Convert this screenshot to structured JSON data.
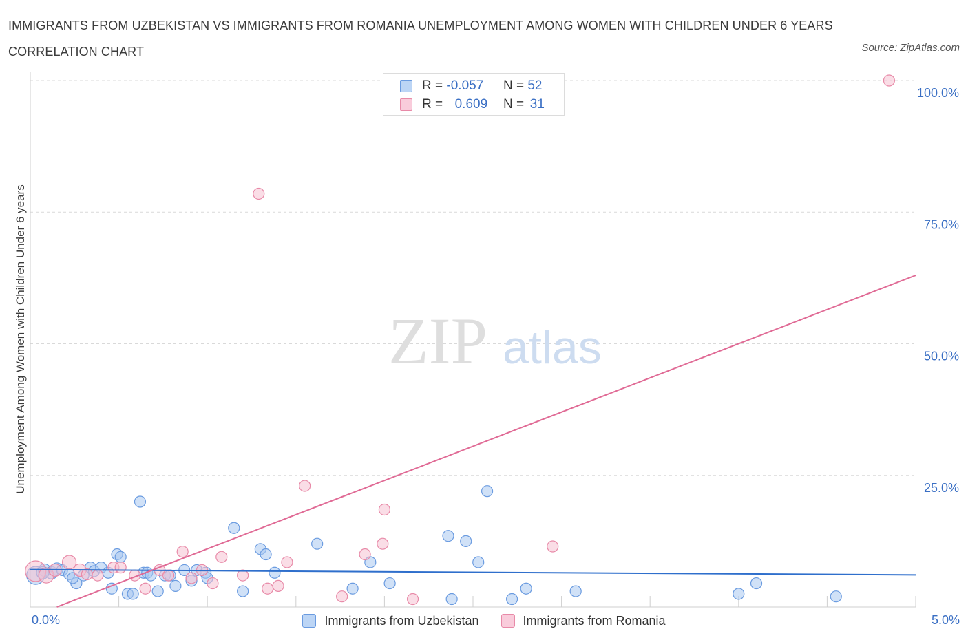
{
  "title": "IMMIGRANTS FROM UZBEKISTAN VS IMMIGRANTS FROM ROMANIA UNEMPLOYMENT AMONG WOMEN WITH CHILDREN UNDER 6 YEARS CORRELATION CHART",
  "source": "Source: ZipAtlas.com",
  "watermark": {
    "zip": "ZIP",
    "atlas": "atlas"
  },
  "legend_top": [
    {
      "r_label": "R =",
      "r_value": "-0.057",
      "n_label": "N =",
      "n_value": "52"
    },
    {
      "r_label": "R =",
      "r_value": "0.609",
      "n_label": "N =",
      "n_value": "31"
    }
  ],
  "colors": {
    "uzbekistan_fill": "#a9c8f0",
    "uzbekistan_stroke": "#6a9be0",
    "uzbekistan_line": "#2f6fcc",
    "romania_fill": "#f6c1d2",
    "romania_stroke": "#e88aa8",
    "romania_line": "#e06a95",
    "tick_label": "#3a6fc4",
    "grid": "#d9d9d9"
  },
  "chart_data": {
    "type": "scatter",
    "title": "IMMIGRANTS FROM UZBEKISTAN VS IMMIGRANTS FROM ROMANIA UNEMPLOYMENT AMONG WOMEN WITH CHILDREN UNDER 6 YEARS CORRELATION CHART",
    "xlabel": "",
    "ylabel": "Unemployment Among Women with Children Under 6 years",
    "xlim": [
      0,
      5
    ],
    "ylim": [
      0,
      100
    ],
    "x_tick_labels": [
      "0.0%",
      "5.0%"
    ],
    "y_ticks": [
      25,
      50,
      75,
      100
    ],
    "y_tick_labels": [
      "25.0%",
      "50.0%",
      "75.0%",
      "100.0%"
    ],
    "grid": true,
    "legend_position": "bottom",
    "series": [
      {
        "name": "Immigrants from Uzbekistan",
        "r": -0.057,
        "n": 52,
        "trend": {
          "x": [
            0,
            5
          ],
          "y": [
            7.1,
            6.1
          ]
        },
        "points": [
          {
            "x": 0.03,
            "y": 6.0,
            "r": 13
          },
          {
            "x": 0.08,
            "y": 7.0,
            "r": 9
          },
          {
            "x": 0.12,
            "y": 6.5,
            "r": 9
          },
          {
            "x": 0.15,
            "y": 7.2,
            "r": 9
          },
          {
            "x": 0.18,
            "y": 7.0,
            "r": 8
          },
          {
            "x": 0.22,
            "y": 6.2,
            "r": 8
          },
          {
            "x": 0.26,
            "y": 4.5,
            "r": 8
          },
          {
            "x": 0.3,
            "y": 6.0,
            "r": 8
          },
          {
            "x": 0.34,
            "y": 7.5,
            "r": 8
          },
          {
            "x": 0.36,
            "y": 6.8,
            "r": 8
          },
          {
            "x": 0.4,
            "y": 7.5,
            "r": 8
          },
          {
            "x": 0.44,
            "y": 6.5,
            "r": 8
          },
          {
            "x": 0.46,
            "y": 3.5,
            "r": 8
          },
          {
            "x": 0.49,
            "y": 10.0,
            "r": 8
          },
          {
            "x": 0.51,
            "y": 9.5,
            "r": 8
          },
          {
            "x": 0.55,
            "y": 2.5,
            "r": 8
          },
          {
            "x": 0.58,
            "y": 2.5,
            "r": 8
          },
          {
            "x": 0.62,
            "y": 20.0,
            "r": 8
          },
          {
            "x": 0.64,
            "y": 6.5,
            "r": 8
          },
          {
            "x": 0.66,
            "y": 6.5,
            "r": 8
          },
          {
            "x": 0.72,
            "y": 3.0,
            "r": 8
          },
          {
            "x": 0.76,
            "y": 6.0,
            "r": 8
          },
          {
            "x": 0.79,
            "y": 6.0,
            "r": 8
          },
          {
            "x": 0.82,
            "y": 4.0,
            "r": 8
          },
          {
            "x": 0.87,
            "y": 7.0,
            "r": 8
          },
          {
            "x": 0.91,
            "y": 5.0,
            "r": 8
          },
          {
            "x": 0.94,
            "y": 7.0,
            "r": 8
          },
          {
            "x": 0.99,
            "y": 6.5,
            "r": 8
          },
          {
            "x": 1.0,
            "y": 5.5,
            "r": 8
          },
          {
            "x": 1.15,
            "y": 15.0,
            "r": 8
          },
          {
            "x": 1.2,
            "y": 3.0,
            "r": 8
          },
          {
            "x": 1.3,
            "y": 11.0,
            "r": 8
          },
          {
            "x": 1.33,
            "y": 10.0,
            "r": 8
          },
          {
            "x": 1.38,
            "y": 6.5,
            "r": 8
          },
          {
            "x": 1.62,
            "y": 12.0,
            "r": 8
          },
          {
            "x": 1.82,
            "y": 3.5,
            "r": 8
          },
          {
            "x": 1.92,
            "y": 8.5,
            "r": 8
          },
          {
            "x": 2.03,
            "y": 4.5,
            "r": 8
          },
          {
            "x": 2.36,
            "y": 13.5,
            "r": 8
          },
          {
            "x": 2.38,
            "y": 1.5,
            "r": 8
          },
          {
            "x": 2.46,
            "y": 12.5,
            "r": 8
          },
          {
            "x": 2.53,
            "y": 8.5,
            "r": 8
          },
          {
            "x": 2.58,
            "y": 22.0,
            "r": 8
          },
          {
            "x": 2.72,
            "y": 1.5,
            "r": 8
          },
          {
            "x": 2.8,
            "y": 3.5,
            "r": 8
          },
          {
            "x": 3.08,
            "y": 3.0,
            "r": 8
          },
          {
            "x": 4.0,
            "y": 2.5,
            "r": 8
          },
          {
            "x": 4.1,
            "y": 4.5,
            "r": 8
          },
          {
            "x": 4.55,
            "y": 2.0,
            "r": 8
          },
          {
            "x": 0.07,
            "y": 6.5,
            "r": 9
          },
          {
            "x": 0.24,
            "y": 5.5,
            "r": 8
          },
          {
            "x": 0.68,
            "y": 6.0,
            "r": 8
          }
        ]
      },
      {
        "name": "Immigrants from Romania",
        "r": 0.609,
        "n": 31,
        "trend": {
          "x": [
            0.15,
            5
          ],
          "y": [
            0,
            63
          ]
        },
        "points": [
          {
            "x": 0.03,
            "y": 6.8,
            "r": 15
          },
          {
            "x": 0.09,
            "y": 6.0,
            "r": 11
          },
          {
            "x": 0.14,
            "y": 7.0,
            "r": 9
          },
          {
            "x": 0.22,
            "y": 8.5,
            "r": 10
          },
          {
            "x": 0.28,
            "y": 7.0,
            "r": 9
          },
          {
            "x": 0.32,
            "y": 6.2,
            "r": 8
          },
          {
            "x": 0.38,
            "y": 6.0,
            "r": 8
          },
          {
            "x": 0.47,
            "y": 7.5,
            "r": 8
          },
          {
            "x": 0.51,
            "y": 7.5,
            "r": 8
          },
          {
            "x": 0.59,
            "y": 6.0,
            "r": 8
          },
          {
            "x": 0.65,
            "y": 3.5,
            "r": 8
          },
          {
            "x": 0.73,
            "y": 7.0,
            "r": 8
          },
          {
            "x": 0.78,
            "y": 6.0,
            "r": 8
          },
          {
            "x": 0.86,
            "y": 10.5,
            "r": 8
          },
          {
            "x": 0.91,
            "y": 5.5,
            "r": 8
          },
          {
            "x": 0.97,
            "y": 7.0,
            "r": 8
          },
          {
            "x": 1.03,
            "y": 4.5,
            "r": 8
          },
          {
            "x": 1.08,
            "y": 9.5,
            "r": 8
          },
          {
            "x": 1.2,
            "y": 6.0,
            "r": 8
          },
          {
            "x": 1.29,
            "y": 78.5,
            "r": 8
          },
          {
            "x": 1.34,
            "y": 3.5,
            "r": 8
          },
          {
            "x": 1.4,
            "y": 4.0,
            "r": 8
          },
          {
            "x": 1.45,
            "y": 8.5,
            "r": 8
          },
          {
            "x": 1.55,
            "y": 23.0,
            "r": 8
          },
          {
            "x": 1.76,
            "y": 2.0,
            "r": 8
          },
          {
            "x": 1.89,
            "y": 10.0,
            "r": 8
          },
          {
            "x": 1.99,
            "y": 12.0,
            "r": 8
          },
          {
            "x": 2.0,
            "y": 18.5,
            "r": 8
          },
          {
            "x": 2.16,
            "y": 1.5,
            "r": 8
          },
          {
            "x": 2.95,
            "y": 11.5,
            "r": 8
          },
          {
            "x": 4.85,
            "y": 100.0,
            "r": 8
          }
        ]
      }
    ]
  }
}
